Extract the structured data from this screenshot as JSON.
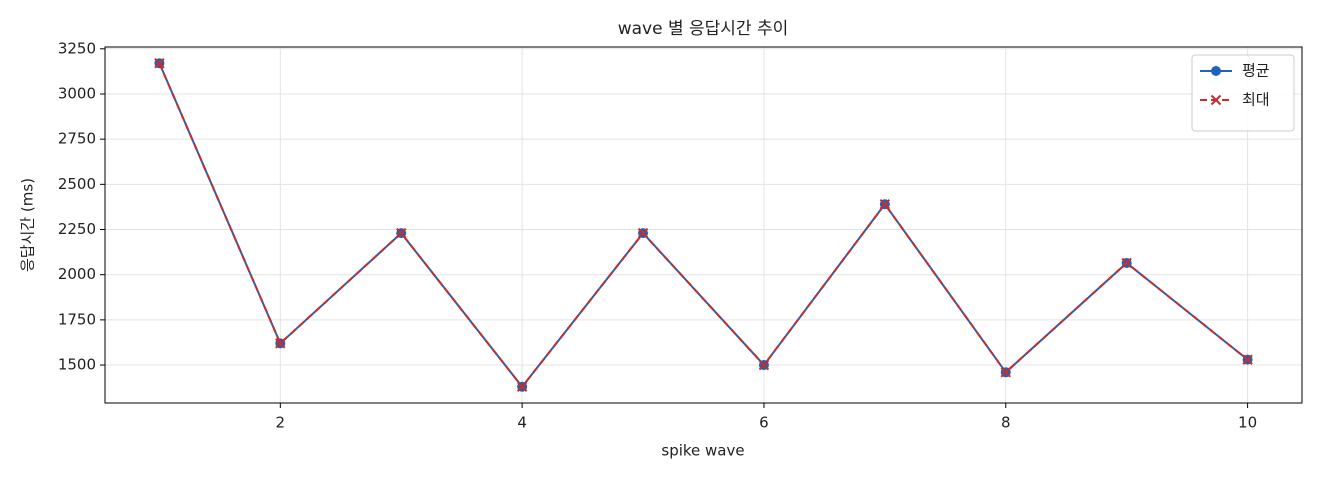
{
  "chart_data": {
    "type": "line",
    "title": "wave 별 응답시간 추이",
    "x_label": "spike wave",
    "y_label": "응답시간 (ms)",
    "x": [
      1,
      2,
      3,
      4,
      5,
      6,
      7,
      8,
      9,
      10
    ],
    "series": [
      {
        "name": "평균",
        "color": "#1f63b8",
        "marker": "circle",
        "dash": false,
        "values": [
          3170,
          1620,
          2230,
          1380,
          2230,
          1500,
          2390,
          1460,
          2065,
          1530
        ]
      },
      {
        "name": "최대",
        "color": "#c62d2d",
        "marker": "x",
        "dash": true,
        "values": [
          3170,
          1620,
          2230,
          1380,
          2230,
          1500,
          2390,
          1460,
          2065,
          1530
        ]
      }
    ],
    "xlim": [
      0.55,
      10.45
    ],
    "xticks": [
      2,
      4,
      6,
      8,
      10
    ],
    "ylim": [
      1290,
      3260
    ],
    "yticks": [
      1500,
      1750,
      2000,
      2250,
      2500,
      2750,
      3000,
      3250
    ],
    "grid": true,
    "legend": "upper right"
  }
}
